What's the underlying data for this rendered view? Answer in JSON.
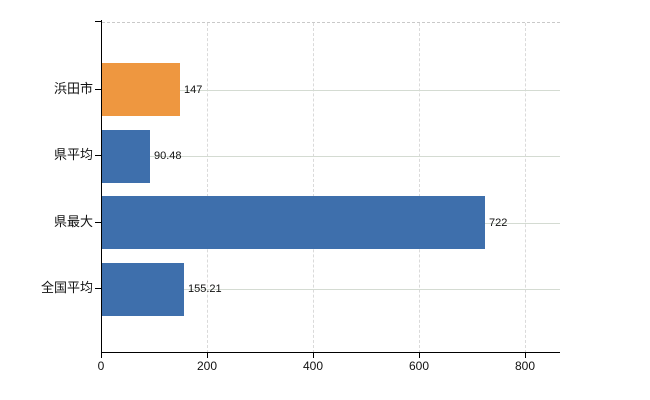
{
  "chart_data": {
    "type": "bar",
    "orientation": "horizontal",
    "title": "",
    "categories": [
      "浜田市",
      "県平均",
      "県最大",
      "全国平均"
    ],
    "values": [
      147,
      90.48,
      722,
      155.21
    ],
    "value_labels": [
      "147",
      "90.48",
      "722",
      "155.21"
    ],
    "bar_colors": [
      "#ee9740",
      "#3e6fac",
      "#3e6fac",
      "#3e6fac"
    ],
    "x_tick_labels": [
      "0",
      "200",
      "400",
      "600",
      "800"
    ],
    "x_tick_values": [
      0,
      200,
      400,
      600,
      800
    ],
    "xlim": [
      0,
      864
    ],
    "grid": true,
    "legend_position": "none",
    "colors": {
      "highlight_bar": "#ee9740",
      "default_bar": "#3e6fac",
      "grid_horizontal": "#d4dbd2",
      "grid_vertical": "#dadada",
      "plot_top_border": "#c9c9c9",
      "axis": "#000000",
      "text": "#111111",
      "background": "#ffffff"
    }
  }
}
